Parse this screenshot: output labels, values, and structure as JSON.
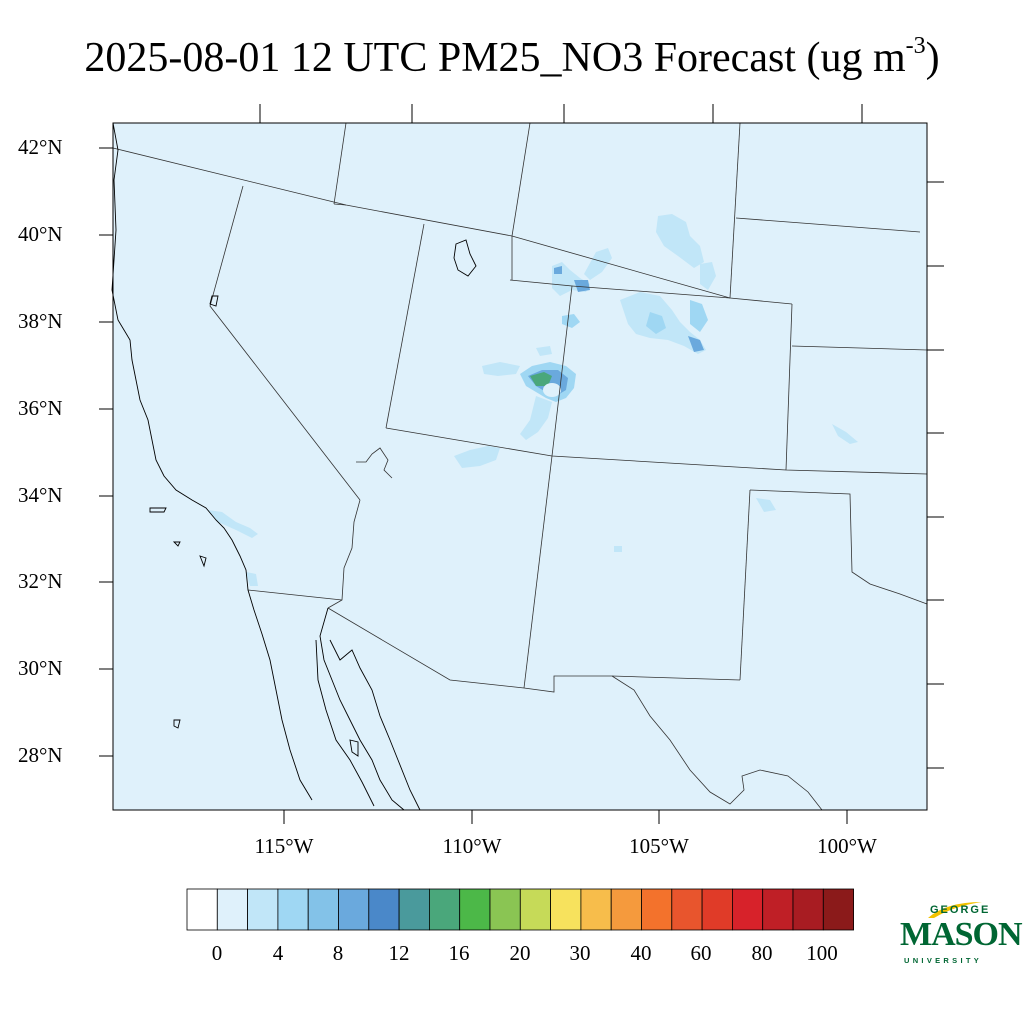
{
  "title": {
    "main": "2025-08-01 12 UTC PM25_NO3 Forecast (ug m",
    "superscript": "-3",
    "close": ")"
  },
  "map": {
    "lat_labels": [
      "42°N",
      "40°N",
      "38°N",
      "36°N",
      "34°N",
      "32°N",
      "30°N",
      "28°N"
    ],
    "lon_labels": [
      "115°W",
      "110°W",
      "105°W",
      "100°W"
    ],
    "background_color": "#dff1fb"
  },
  "colorbar": {
    "colors": [
      "#ffffff",
      "#dff1fb",
      "#c1e6f8",
      "#9fd7f3",
      "#83c2e8",
      "#6aa9dd",
      "#4a88c9",
      "#4a9a9c",
      "#4aa77b",
      "#4cb848",
      "#8ac553",
      "#c6da58",
      "#f7e25d",
      "#f7bd4b",
      "#f59a3d",
      "#f3722c",
      "#e8552d",
      "#e03b28",
      "#d7222a",
      "#bf1f26",
      "#a81c22",
      "#8b1a1a"
    ],
    "labels": [
      "0",
      "4",
      "8",
      "12",
      "16",
      "20",
      "30",
      "40",
      "60",
      "80",
      "100"
    ]
  },
  "logo": {
    "george": "GEORGE",
    "mason": "MASON",
    "university": "UNIVERSITY",
    "color": "#006633",
    "accent": "#f2c200"
  }
}
